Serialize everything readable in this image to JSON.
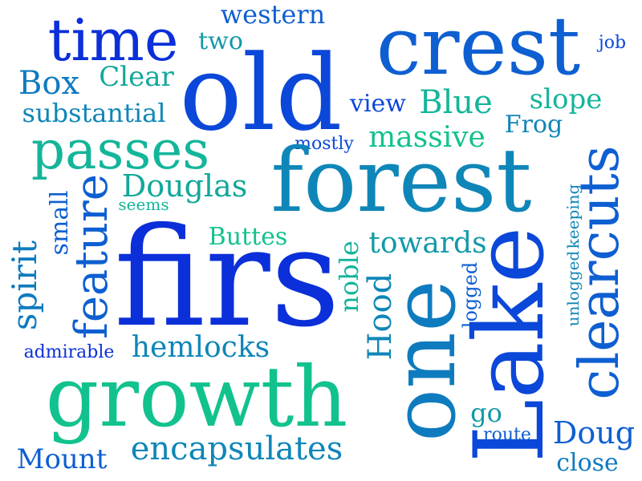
{
  "words": [
    {
      "text": "crest",
      "color": "#0e5fd1"
    },
    {
      "text": "old",
      "color": "#0b47d9"
    },
    {
      "text": "time",
      "color": "#0b2fd9"
    },
    {
      "text": "western",
      "color": "#0e5fd1"
    },
    {
      "text": "two",
      "color": "#129aa8"
    },
    {
      "text": "Box",
      "color": "#0f7bbf"
    },
    {
      "text": "Clear",
      "color": "#14a79c"
    },
    {
      "text": "substantial",
      "color": "#0f86b8"
    },
    {
      "text": "job",
      "color": "#0b47d9"
    },
    {
      "text": "view",
      "color": "#0b47d9"
    },
    {
      "text": "Blue",
      "color": "#14b59a"
    },
    {
      "text": "slope",
      "color": "#14b59a"
    },
    {
      "text": "Frog",
      "color": "#0f86b8"
    },
    {
      "text": "mostly",
      "color": "#0b47d9"
    },
    {
      "text": "massive",
      "color": "#12c28e"
    },
    {
      "text": "passes",
      "color": "#14b59a"
    },
    {
      "text": "forest",
      "color": "#0f86b8"
    },
    {
      "text": "clearcuts",
      "color": "#0e5fd1"
    },
    {
      "text": "Douglas",
      "color": "#12a89a"
    },
    {
      "text": "seems",
      "color": "#14b59a"
    },
    {
      "text": "small",
      "color": "#0e5fd1"
    },
    {
      "text": "unlogged",
      "color": "#0f86b8"
    },
    {
      "text": "keeping",
      "color": "#0f86b8"
    },
    {
      "text": "firs",
      "color": "#0b2fd9"
    },
    {
      "text": "Buttes",
      "color": "#12c28e"
    },
    {
      "text": "towards",
      "color": "#129aa8"
    },
    {
      "text": "noble",
      "color": "#14b59a"
    },
    {
      "text": "logged",
      "color": "#0e5fd1"
    },
    {
      "text": "spirit",
      "color": "#0f7bbf"
    },
    {
      "text": "feature",
      "color": "#0e5fd1"
    },
    {
      "text": "Hood",
      "color": "#0f86b8"
    },
    {
      "text": "one",
      "color": "#0f7bbf"
    },
    {
      "text": "Lake",
      "color": "#0b47d9"
    },
    {
      "text": "hemlocks",
      "color": "#0f86b8"
    },
    {
      "text": "admirable",
      "color": "#0b2fd9"
    },
    {
      "text": "growth",
      "color": "#12c28e"
    },
    {
      "text": "go",
      "color": "#129aa8"
    },
    {
      "text": "route",
      "color": "#0e5fd1"
    },
    {
      "text": "Doug",
      "color": "#0e5fd1"
    },
    {
      "text": "encapsulates",
      "color": "#0f86b8"
    },
    {
      "text": "Mount",
      "color": "#0e5fd1"
    },
    {
      "text": "close",
      "color": "#0f7bbf"
    }
  ]
}
